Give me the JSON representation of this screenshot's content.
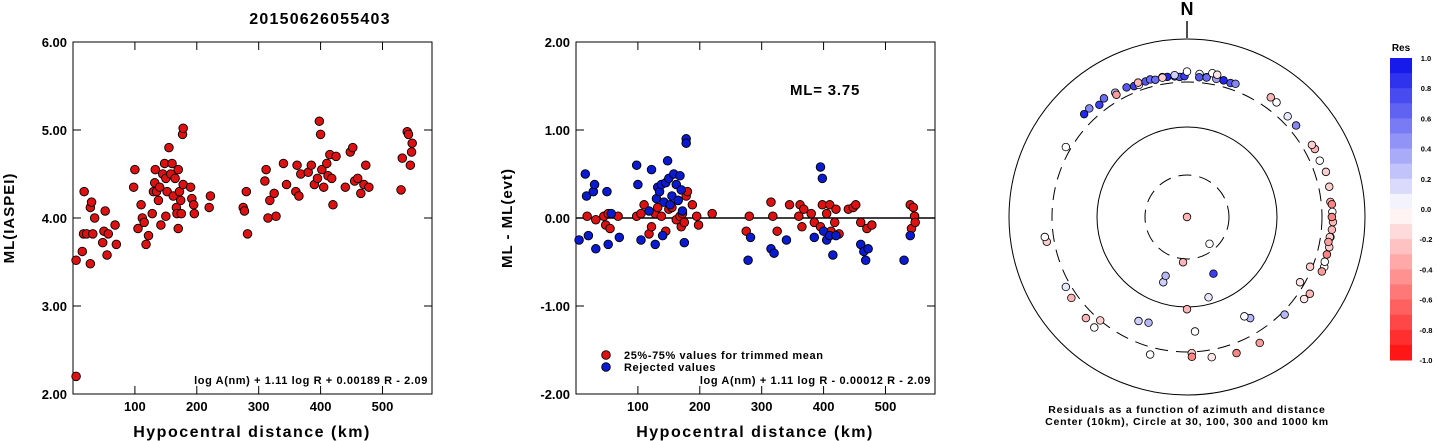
{
  "event_id": "20150626055403",
  "colors": {
    "used": "#dd1111",
    "rejected": "#0a1ad0",
    "axis": "#000000"
  },
  "chart_data": [
    {
      "type": "scatter",
      "id": "ml-vs-distance",
      "xlabel": "Hypocentral distance (km)",
      "ylabel": "ML(IASPEI)",
      "xlim": [
        0,
        580
      ],
      "ylim": [
        2.0,
        6.0
      ],
      "xticks": [
        "100",
        "200",
        "300",
        "400",
        "500"
      ],
      "yticks": [
        "2.00",
        "3.00",
        "4.00",
        "5.00",
        "6.00"
      ],
      "formula": "log A(nm) + 1.11 log R + 0.00189 R - 2.09",
      "points": [
        [
          5,
          2.2
        ],
        [
          5,
          3.52
        ],
        [
          15,
          3.62
        ],
        [
          17,
          3.82
        ],
        [
          18,
          4.3
        ],
        [
          22,
          3.82
        ],
        [
          28,
          3.48
        ],
        [
          28,
          4.12
        ],
        [
          30,
          4.18
        ],
        [
          32,
          3.82
        ],
        [
          35,
          4.0
        ],
        [
          48,
          3.72
        ],
        [
          50,
          3.85
        ],
        [
          52,
          4.08
        ],
        [
          55,
          3.58
        ],
        [
          57,
          3.82
        ],
        [
          68,
          3.92
        ],
        [
          70,
          3.7
        ],
        [
          98,
          4.35
        ],
        [
          100,
          4.55
        ],
        [
          105,
          3.88
        ],
        [
          110,
          4.15
        ],
        [
          112,
          4.0
        ],
        [
          115,
          3.95
        ],
        [
          118,
          3.7
        ],
        [
          122,
          3.8
        ],
        [
          128,
          4.05
        ],
        [
          130,
          4.3
        ],
        [
          132,
          4.4
        ],
        [
          133,
          4.55
        ],
        [
          135,
          4.3
        ],
        [
          138,
          4.2
        ],
        [
          140,
          4.35
        ],
        [
          142,
          3.92
        ],
        [
          145,
          4.5
        ],
        [
          148,
          4.62
        ],
        [
          150,
          4.45
        ],
        [
          150,
          4.02
        ],
        [
          152,
          4.3
        ],
        [
          155,
          4.8
        ],
        [
          158,
          4.5
        ],
        [
          160,
          4.62
        ],
        [
          162,
          4.25
        ],
        [
          165,
          4.45
        ],
        [
          167,
          4.12
        ],
        [
          168,
          4.05
        ],
        [
          170,
          4.55
        ],
        [
          170,
          3.88
        ],
        [
          172,
          4.3
        ],
        [
          174,
          4.2
        ],
        [
          175,
          4.05
        ],
        [
          177,
          4.95
        ],
        [
          178,
          5.02
        ],
        [
          178,
          4.38
        ],
        [
          190,
          4.35
        ],
        [
          192,
          4.22
        ],
        [
          195,
          4.15
        ],
        [
          196,
          4.05
        ],
        [
          220,
          4.12
        ],
        [
          222,
          4.25
        ],
        [
          275,
          4.12
        ],
        [
          277,
          4.08
        ],
        [
          280,
          4.3
        ],
        [
          282,
          3.82
        ],
        [
          310,
          4.42
        ],
        [
          312,
          4.55
        ],
        [
          315,
          4.0
        ],
        [
          318,
          4.2
        ],
        [
          325,
          4.28
        ],
        [
          328,
          4.02
        ],
        [
          340,
          4.62
        ],
        [
          345,
          4.38
        ],
        [
          360,
          4.3
        ],
        [
          362,
          4.6
        ],
        [
          365,
          4.25
        ],
        [
          368,
          4.5
        ],
        [
          380,
          4.52
        ],
        [
          385,
          4.6
        ],
        [
          390,
          4.38
        ],
        [
          395,
          4.45
        ],
        [
          398,
          5.1
        ],
        [
          400,
          4.95
        ],
        [
          402,
          4.55
        ],
        [
          405,
          4.35
        ],
        [
          410,
          4.62
        ],
        [
          412,
          4.48
        ],
        [
          415,
          4.72
        ],
        [
          418,
          4.45
        ],
        [
          420,
          4.15
        ],
        [
          425,
          4.7
        ],
        [
          440,
          4.35
        ],
        [
          448,
          4.75
        ],
        [
          452,
          4.8
        ],
        [
          455,
          4.42
        ],
        [
          460,
          4.45
        ],
        [
          465,
          4.28
        ],
        [
          470,
          4.38
        ],
        [
          473,
          4.6
        ],
        [
          478,
          4.35
        ],
        [
          530,
          4.32
        ],
        [
          532,
          4.68
        ],
        [
          540,
          4.98
        ],
        [
          542,
          4.95
        ],
        [
          545,
          4.6
        ],
        [
          547,
          4.75
        ],
        [
          548,
          4.85
        ]
      ]
    },
    {
      "type": "scatter",
      "id": "residual-vs-distance",
      "xlabel": "Hypocentral distance (km)",
      "ylabel": "ML - ML(evt)",
      "xlim": [
        0,
        580
      ],
      "ylim": [
        -2.0,
        2.0
      ],
      "xticks": [
        "100",
        "200",
        "300",
        "400",
        "500"
      ],
      "yticks": [
        "-2.00",
        "-1.00",
        "0.00",
        "1.00",
        "2.00"
      ],
      "ml_label": "ML= 3.75",
      "legend": [
        "25%-75% values for trimmed mean",
        "Rejected values"
      ],
      "formula": "log A(nm) + 1.11 log R - 0.00012 R - 2.09",
      "used": [
        [
          18,
          0.02
        ],
        [
          32,
          -0.02
        ],
        [
          45,
          0.02
        ],
        [
          48,
          -0.08
        ],
        [
          52,
          0.05
        ],
        [
          55,
          -0.12
        ],
        [
          68,
          0.02
        ],
        [
          98,
          0.02
        ],
        [
          105,
          0.05
        ],
        [
          110,
          0.15
        ],
        [
          118,
          -0.18
        ],
        [
          122,
          -0.1
        ],
        [
          128,
          0.05
        ],
        [
          132,
          0.12
        ],
        [
          138,
          0.02
        ],
        [
          145,
          -0.15
        ],
        [
          150,
          0.1
        ],
        [
          155,
          0.12
        ],
        [
          162,
          -0.02
        ],
        [
          165,
          0.2
        ],
        [
          168,
          0.02
        ],
        [
          170,
          -0.1
        ],
        [
          172,
          0.05
        ],
        [
          175,
          -0.05
        ],
        [
          178,
          0.25
        ],
        [
          180,
          0.3
        ],
        [
          188,
          0.15
        ],
        [
          195,
          0.02
        ],
        [
          198,
          -0.08
        ],
        [
          220,
          0.05
        ],
        [
          275,
          -0.15
        ],
        [
          280,
          0.02
        ],
        [
          315,
          0.18
        ],
        [
          318,
          0.02
        ],
        [
          325,
          -0.15
        ],
        [
          345,
          0.15
        ],
        [
          360,
          0.02
        ],
        [
          362,
          0.15
        ],
        [
          365,
          -0.1
        ],
        [
          368,
          0.1
        ],
        [
          380,
          0.05
        ],
        [
          385,
          -0.05
        ],
        [
          395,
          -0.1
        ],
        [
          398,
          0.15
        ],
        [
          405,
          0.05
        ],
        [
          410,
          0.15
        ],
        [
          412,
          -0.15
        ],
        [
          418,
          -0.05
        ],
        [
          420,
          0.1
        ],
        [
          425,
          -0.18
        ],
        [
          440,
          0.1
        ],
        [
          448,
          0.12
        ],
        [
          452,
          0.15
        ],
        [
          460,
          -0.05
        ],
        [
          470,
          -0.12
        ],
        [
          478,
          -0.08
        ],
        [
          540,
          0.15
        ],
        [
          542,
          -0.12
        ],
        [
          545,
          0.12
        ],
        [
          547,
          0.02
        ],
        [
          548,
          -0.05
        ]
      ],
      "rejected": [
        [
          5,
          -0.25
        ],
        [
          15,
          0.5
        ],
        [
          17,
          0.25
        ],
        [
          20,
          -0.2
        ],
        [
          28,
          0.3
        ],
        [
          30,
          0.38
        ],
        [
          32,
          -0.35
        ],
        [
          50,
          0.3
        ],
        [
          52,
          -0.3
        ],
        [
          57,
          0.05
        ],
        [
          70,
          -0.22
        ],
        [
          98,
          0.6
        ],
        [
          100,
          0.38
        ],
        [
          105,
          -0.25
        ],
        [
          118,
          0.08
        ],
        [
          122,
          0.55
        ],
        [
          128,
          -0.3
        ],
        [
          130,
          0.22
        ],
        [
          132,
          0.35
        ],
        [
          135,
          0.3
        ],
        [
          138,
          0.38
        ],
        [
          140,
          -0.2
        ],
        [
          142,
          0.18
        ],
        [
          145,
          0.4
        ],
        [
          148,
          0.65
        ],
        [
          150,
          0.45
        ],
        [
          152,
          0.15
        ],
        [
          155,
          0.25
        ],
        [
          158,
          0.5
        ],
        [
          162,
          0.38
        ],
        [
          165,
          0.2
        ],
        [
          168,
          0.48
        ],
        [
          170,
          0.32
        ],
        [
          172,
          0.08
        ],
        [
          175,
          -0.28
        ],
        [
          178,
          0.9
        ],
        [
          178,
          0.85
        ],
        [
          278,
          -0.48
        ],
        [
          282,
          -0.22
        ],
        [
          315,
          -0.35
        ],
        [
          320,
          -0.4
        ],
        [
          340,
          -0.25
        ],
        [
          385,
          -0.22
        ],
        [
          395,
          0.58
        ],
        [
          398,
          0.45
        ],
        [
          400,
          -0.15
        ],
        [
          405,
          -0.25
        ],
        [
          410,
          -0.2
        ],
        [
          415,
          -0.42
        ],
        [
          420,
          -0.2
        ],
        [
          460,
          -0.3
        ],
        [
          465,
          -0.38
        ],
        [
          468,
          -0.48
        ],
        [
          472,
          -0.35
        ],
        [
          530,
          -0.48
        ],
        [
          540,
          -0.2
        ]
      ]
    },
    {
      "type": "scatter",
      "id": "residual-azimuth-map",
      "north_label": "N",
      "caption_line1": "Residuals as a function of azimuth and distance",
      "caption_line2": "Center (10km), Circle at 30, 100, 300 and 1000 km",
      "colorbar_title": "Res",
      "colorbar_ticks": [
        "1.0",
        "0.8",
        "0.6",
        "0.4",
        "0.2",
        "0.0",
        "-0.2",
        "-0.4",
        "-0.6",
        "-0.8",
        "-1.0"
      ],
      "rings_km": [
        30,
        100,
        300,
        1000
      ],
      "stations": [
        [
          5,
          440,
          0.05
        ],
        [
          8,
          400,
          0.0
        ],
        [
          12,
          420,
          0.05
        ],
        [
          140,
          25,
          0.0
        ],
        [
          185,
          35,
          -0.3
        ],
        [
          155,
          60,
          0.8
        ],
        [
          165,
          90,
          0.1
        ],
        [
          180,
          110,
          -0.3
        ],
        [
          200,
          70,
          0.2
        ],
        [
          200,
          60,
          0.3
        ],
        [
          200,
          200,
          0.3
        ],
        [
          205,
          210,
          0.2
        ],
        [
          176,
          210,
          0.0
        ],
        [
          178,
          320,
          -0.2
        ],
        [
          178,
          380,
          -0.5
        ],
        [
          170,
          420,
          -0.1
        ],
        [
          195,
          420,
          0.0
        ],
        [
          160,
          460,
          -0.5
        ],
        [
          150,
          470,
          -0.4
        ],
        [
          135,
          350,
          0.3
        ],
        [
          120,
          280,
          -0.1
        ],
        [
          112,
          290,
          -0.2
        ],
        [
          125,
          430,
          -0.1
        ],
        [
          110,
          480,
          0.0
        ],
        [
          220,
          450,
          0.0
        ],
        [
          225,
          430,
          -0.3
        ],
        [
          220,
          300,
          -0.2
        ],
        [
          235,
          400,
          -0.3
        ],
        [
          240,
          380,
          0.1
        ],
        [
          260,
          420,
          -0.2
        ],
        [
          262,
          440,
          0.0
        ],
        [
          300,
          380,
          0.0
        ],
        [
          315,
          470,
          0.9
        ],
        [
          318,
          480,
          0.5
        ],
        [
          322,
          420,
          0.8
        ],
        [
          325,
          460,
          0.6
        ],
        [
          330,
          440,
          0.3
        ],
        [
          335,
          430,
          0.7
        ],
        [
          338,
          400,
          0.8
        ],
        [
          340,
          390,
          0.1
        ],
        [
          343,
          410,
          0.7
        ],
        [
          345,
          420,
          0.6
        ],
        [
          347,
          395,
          0.6
        ],
        [
          350,
          415,
          0.7
        ],
        [
          352,
          405,
          0.9
        ],
        [
          355,
          400,
          0.8
        ],
        [
          357,
          385,
          0.7
        ],
        [
          359,
          395,
          0.8
        ],
        [
          5,
          385,
          0.7
        ],
        [
          8,
          395,
          0.6
        ],
        [
          12,
          400,
          0.4
        ],
        [
          15,
          405,
          0.9
        ],
        [
          18,
          395,
          0.7
        ],
        [
          20,
          410,
          0.5
        ],
        [
          330,
          400,
          -0.4
        ],
        [
          340,
          430,
          -0.3
        ],
        [
          350,
          405,
          -0.2
        ],
        [
          355,
          420,
          0.2
        ],
        [
          0,
          470,
          0.0
        ],
        [
          10,
          480,
          0.0
        ],
        [
          12,
          470,
          -0.1
        ],
        [
          35,
          480,
          -0.3
        ],
        [
          38,
          470,
          0.0
        ],
        [
          50,
          420,
          0.5
        ],
        [
          62,
          460,
          -0.3
        ],
        [
          67,
          450,
          0.0
        ],
        [
          72,
          480,
          -0.2
        ],
        [
          78,
          470,
          -0.2
        ],
        [
          84,
          450,
          -0.3
        ],
        [
          88,
          470,
          0.0
        ],
        [
          92,
          480,
          -0.3
        ],
        [
          95,
          470,
          -0.3
        ],
        [
          98,
          460,
          -0.2
        ],
        [
          102,
          470,
          -0.2
        ],
        [
          108,
          460,
          0.0
        ],
        [
          112,
          470,
          -0.4
        ],
        [
          122,
          460,
          -0.3
        ],
        [
          105,
          460,
          -0.5
        ],
        [
          90,
          460,
          -0.5
        ],
        [
          85,
          470,
          -0.5
        ],
        [
          60,
          450,
          -0.2
        ],
        [
          45,
          420,
          0.1
        ],
        [
          98,
          450,
          -0.2
        ],
        [
          100,
          440,
          -0.4
        ],
        [
          148,
          230,
          0.3
        ],
        [
          150,
          210,
          0.0
        ]
      ]
    }
  ]
}
